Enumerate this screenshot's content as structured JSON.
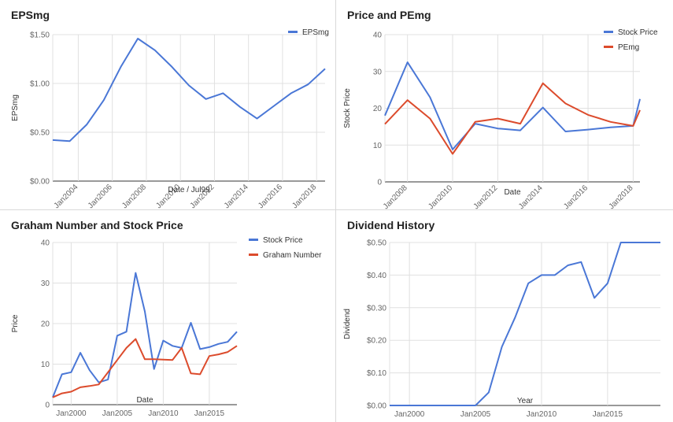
{
  "colors": {
    "blue": "#4a77d6",
    "red": "#dc4b2c",
    "grid": "#e0e0e0",
    "axis": "#666666"
  },
  "chart_data": [
    {
      "id": "eps",
      "type": "line",
      "title": "EPSmg",
      "xlabel": "Date / Jul99",
      "ylabel": "EPSmg",
      "x_domain": [
        2002.5,
        2018.5
      ],
      "ylim": [
        0,
        1.5
      ],
      "yticks": [
        0,
        0.5,
        1.0,
        1.5
      ],
      "ytick_labels": [
        "$0.00",
        "$0.50",
        "$1.00",
        "$1.50"
      ],
      "xticks": [
        2004,
        2006,
        2008,
        2010,
        2012,
        2014,
        2016,
        2018
      ],
      "xtick_labels": [
        "Jan2004",
        "Jan2006",
        "Jan2008",
        "Jan2010",
        "Jan2012",
        "Jan2014",
        "Jan2016",
        "Jan2018"
      ],
      "xtick_rotate": true,
      "legend_position": "top-right",
      "series": [
        {
          "name": "EPSmg",
          "color": "#4a77d6",
          "points": [
            [
              2002.5,
              0.42
            ],
            [
              2003.5,
              0.41
            ],
            [
              2004.5,
              0.58
            ],
            [
              2005.5,
              0.83
            ],
            [
              2006.5,
              1.17
            ],
            [
              2007.5,
              1.46
            ],
            [
              2008.5,
              1.34
            ],
            [
              2009.5,
              1.17
            ],
            [
              2010.5,
              0.98
            ],
            [
              2011.5,
              0.84
            ],
            [
              2012.5,
              0.9
            ],
            [
              2013.5,
              0.76
            ],
            [
              2014.5,
              0.64
            ],
            [
              2015.5,
              0.77
            ],
            [
              2016.5,
              0.9
            ],
            [
              2017.5,
              0.99
            ],
            [
              2018.5,
              1.15
            ]
          ]
        }
      ]
    },
    {
      "id": "price_pe",
      "type": "line",
      "title": "Price and PEmg",
      "xlabel": "Date",
      "ylabel": "Stock Price",
      "x_domain": [
        2007,
        2018.3
      ],
      "ylim": [
        0,
        40
      ],
      "yticks": [
        0,
        10,
        20,
        30,
        40
      ],
      "ytick_labels": [
        "0",
        "10",
        "20",
        "30",
        "40"
      ],
      "xticks": [
        2008,
        2010,
        2012,
        2014,
        2016,
        2018
      ],
      "xtick_labels": [
        "Jan2008",
        "Jan2010",
        "Jan2012",
        "Jan2014",
        "Jan2016",
        "Jan2018"
      ],
      "xtick_rotate": true,
      "legend_position": "top-right",
      "series": [
        {
          "name": "Stock Price",
          "color": "#4a77d6",
          "points": [
            [
              2007,
              18
            ],
            [
              2008,
              32.5
            ],
            [
              2009,
              23
            ],
            [
              2010,
              8.8
            ],
            [
              2011,
              15.8
            ],
            [
              2012,
              14.5
            ],
            [
              2013,
              14
            ],
            [
              2014,
              20.2
            ],
            [
              2015,
              13.7
            ],
            [
              2016,
              14.2
            ],
            [
              2017,
              14.8
            ],
            [
              2018,
              15.2
            ],
            [
              2018.3,
              22.5
            ]
          ]
        },
        {
          "name": "PEmg",
          "color": "#dc4b2c",
          "points": [
            [
              2007,
              15.7
            ],
            [
              2008,
              22.2
            ],
            [
              2009,
              17.2
            ],
            [
              2010,
              7.6
            ],
            [
              2011,
              16.3
            ],
            [
              2012,
              17.2
            ],
            [
              2013,
              15.8
            ],
            [
              2014,
              26.8
            ],
            [
              2015,
              21.3
            ],
            [
              2016,
              18.2
            ],
            [
              2017,
              16.3
            ],
            [
              2018,
              15.2
            ],
            [
              2018.3,
              19.5
            ]
          ]
        }
      ]
    },
    {
      "id": "graham",
      "type": "line",
      "title": "Graham Number and Stock Price",
      "xlabel": "Date",
      "ylabel": "Price",
      "x_domain": [
        1998,
        2018
      ],
      "ylim": [
        0,
        40
      ],
      "yticks": [
        0,
        10,
        20,
        30,
        40
      ],
      "ytick_labels": [
        "0",
        "10",
        "20",
        "30",
        "40"
      ],
      "xticks": [
        2000,
        2005,
        2010,
        2015
      ],
      "xtick_labels": [
        "Jan2000",
        "Jan2005",
        "Jan2010",
        "Jan2015"
      ],
      "xtick_rotate": false,
      "legend_position": "top-right",
      "series": [
        {
          "name": "Stock Price",
          "color": "#4a77d6",
          "points": [
            [
              1998,
              1.8
            ],
            [
              1999,
              7.5
            ],
            [
              2000,
              8
            ],
            [
              2001,
              12.8
            ],
            [
              2002,
              8.5
            ],
            [
              2003,
              5.5
            ],
            [
              2004,
              6.2
            ],
            [
              2005,
              17
            ],
            [
              2006,
              18
            ],
            [
              2007,
              32.5
            ],
            [
              2008,
              23
            ],
            [
              2009,
              8.8
            ],
            [
              2010,
              15.8
            ],
            [
              2011,
              14.5
            ],
            [
              2012,
              14
            ],
            [
              2013,
              20.2
            ],
            [
              2014,
              13.7
            ],
            [
              2015,
              14.2
            ],
            [
              2016,
              15
            ],
            [
              2017,
              15.5
            ],
            [
              2018,
              18
            ]
          ]
        },
        {
          "name": "Graham Number",
          "color": "#dc4b2c",
          "points": [
            [
              1998,
              1.8
            ],
            [
              1999,
              2.8
            ],
            [
              2000,
              3.2
            ],
            [
              2001,
              4.3
            ],
            [
              2002,
              4.6
            ],
            [
              2003,
              5
            ],
            [
              2004,
              8
            ],
            [
              2005,
              11
            ],
            [
              2006,
              14
            ],
            [
              2007,
              16.2
            ],
            [
              2008,
              11.2
            ],
            [
              2009,
              11.2
            ],
            [
              2010,
              11.1
            ],
            [
              2011,
              11
            ],
            [
              2012,
              14
            ],
            [
              2013,
              7.7
            ],
            [
              2014,
              7.5
            ],
            [
              2015,
              12
            ],
            [
              2016,
              12.4
            ],
            [
              2017,
              13
            ],
            [
              2018,
              14.5
            ]
          ]
        }
      ]
    },
    {
      "id": "dividend",
      "type": "line",
      "title": "Dividend History",
      "xlabel": "Year",
      "ylabel": "Dividend",
      "x_domain": [
        1998.5,
        2019
      ],
      "ylim": [
        0,
        0.5
      ],
      "yticks": [
        0,
        0.1,
        0.2,
        0.3,
        0.4,
        0.5
      ],
      "ytick_labels": [
        "$0.00",
        "$0.10",
        "$0.20",
        "$0.30",
        "$0.40",
        "$0.50"
      ],
      "xticks": [
        2000,
        2005,
        2010,
        2015
      ],
      "xtick_labels": [
        "Jan2000",
        "Jan2005",
        "Jan2010",
        "Jan2015"
      ],
      "xtick_rotate": false,
      "legend_position": "none",
      "series": [
        {
          "name": "",
          "color": "#4a77d6",
          "points": [
            [
              1998.5,
              0
            ],
            [
              2005,
              0
            ],
            [
              2006,
              0.04
            ],
            [
              2007,
              0.18
            ],
            [
              2008,
              0.27
            ],
            [
              2009,
              0.375
            ],
            [
              2010,
              0.4
            ],
            [
              2011,
              0.4
            ],
            [
              2012,
              0.43
            ],
            [
              2013,
              0.44
            ],
            [
              2014,
              0.33
            ],
            [
              2015,
              0.375
            ],
            [
              2016,
              0.5
            ],
            [
              2019,
              0.5
            ]
          ]
        }
      ]
    }
  ]
}
